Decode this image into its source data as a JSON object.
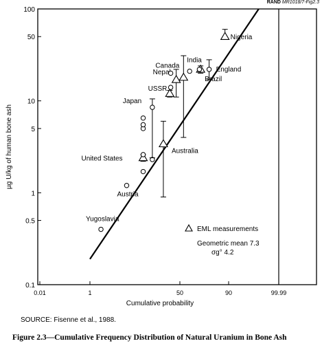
{
  "figure": {
    "id_prefix": "RAND",
    "id": "MR1018/7-Fig2.3",
    "source": "SOURCE:  Fisenne et al., 1988.",
    "caption": "Figure 2.3—Cumulative Frequency Distribution of Natural Uranium in Bone Ash"
  },
  "chart_data": {
    "type": "scatter",
    "title": "",
    "xlabel": "Cumulative probability",
    "ylabel": "µg U/kg of human bone ash",
    "y_scale": "log",
    "ylim": [
      0.1,
      100
    ],
    "y_ticks": [
      {
        "value": 0.1,
        "label": "0.1"
      },
      {
        "value": 0.5,
        "label": "0.5"
      },
      {
        "value": 1,
        "label": "1"
      },
      {
        "value": 5,
        "label": "5"
      },
      {
        "value": 10,
        "label": "10"
      },
      {
        "value": 50,
        "label": "50"
      },
      {
        "value": 100,
        "label": "100"
      }
    ],
    "x_scale": "probability (%)",
    "xlim": [
      0.01,
      99.99
    ],
    "x_ticks": [
      {
        "value": 0.01,
        "label": "0.01"
      },
      {
        "value": 1,
        "label": "1"
      },
      {
        "value": 50,
        "label": "50"
      },
      {
        "value": 90,
        "label": "90"
      },
      {
        "value": 99.99,
        "label": "99.99"
      }
    ],
    "reference_line_x": 99.99,
    "fit_line": {
      "from": {
        "x": 1,
        "y": 0.19
      },
      "to": {
        "x": 96,
        "y": 100
      }
    },
    "series": [
      {
        "name": "EML measurements",
        "marker": "triangle",
        "points": [
          {
            "x": 30,
            "y": 2.4,
            "label": "United States",
            "err": [
              2.2,
              2.6
            ]
          },
          {
            "x": 41,
            "y": 3.4,
            "label": "Australia",
            "err": [
              0.9,
              6
            ]
          },
          {
            "x": 44.5,
            "y": 12,
            "label": "",
            "err": [
              11,
              13
            ]
          },
          {
            "x": 48,
            "y": 17,
            "label": "Nepal",
            "err": [
              11,
              22
            ]
          },
          {
            "x": 53,
            "y": 18,
            "label": "Canada",
            "err": [
              4,
              31
            ]
          },
          {
            "x": 67,
            "y": 22,
            "label": "Brazil",
            "err": [
              20,
              24
            ]
          },
          {
            "x": 87,
            "y": 50,
            "label": "Nigeria",
            "err": [
              47,
              60
            ]
          }
        ]
      },
      {
        "name": "",
        "marker": "circle",
        "points": [
          {
            "x": 7,
            "y": 0.4,
            "label": "Yugoslavia"
          },
          {
            "x": 21,
            "y": 1.2,
            "label": "Austria"
          },
          {
            "x": 30,
            "y": 1.7,
            "label": ""
          },
          {
            "x": 30,
            "y": 2.6,
            "label": ""
          },
          {
            "x": 30,
            "y": 5,
            "label": ""
          },
          {
            "x": 30,
            "y": 5.5,
            "label": ""
          },
          {
            "x": 30,
            "y": 6.5,
            "label": ""
          },
          {
            "x": 35,
            "y": 2.3,
            "label": ""
          },
          {
            "x": 35,
            "y": 8.5,
            "label": "Japan",
            "err": [
              2.4,
              10.5
            ]
          },
          {
            "x": 45,
            "y": 14,
            "label": "USSR"
          },
          {
            "x": 45,
            "y": 20,
            "label": ""
          },
          {
            "x": 58,
            "y": 21,
            "label": "India"
          },
          {
            "x": 66,
            "y": 22,
            "label": ""
          },
          {
            "x": 74,
            "y": 22,
            "label": "England",
            "err": [
              17,
              28
            ]
          }
        ]
      }
    ],
    "annotations": [
      "Geometric mean 7.3",
      "σg° 4.2"
    ]
  }
}
